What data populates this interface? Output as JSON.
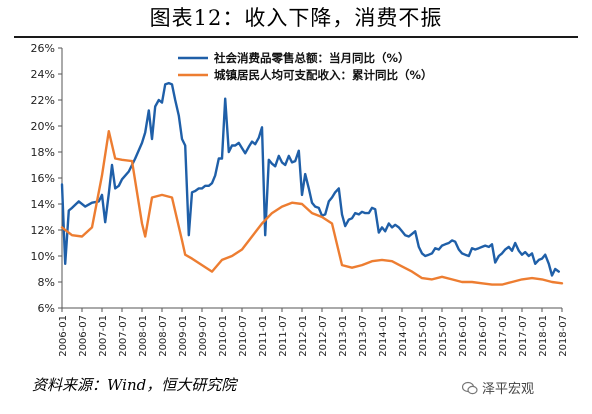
{
  "title": "图表12：收入下降，消费不振",
  "source": "资料来源：Wind，恒大研究院",
  "watermark": "泽平宏观",
  "chart_data": {
    "type": "line",
    "ylim": [
      6,
      26
    ],
    "yticks": [
      6,
      8,
      10,
      12,
      14,
      16,
      18,
      20,
      22,
      24,
      26
    ],
    "xlim": [
      2006.0,
      2018.5
    ],
    "x_tick_labels": [
      "2006-01",
      "2006-07",
      "2007-01",
      "2007-07",
      "2008-01",
      "2008-07",
      "2009-01",
      "2009-07",
      "2010-01",
      "2010-07",
      "2011-01",
      "2011-07",
      "2012-01",
      "2012-07",
      "2013-01",
      "2013-07",
      "2014-01",
      "2014-07",
      "2015-01",
      "2015-07",
      "2016-01",
      "2016-07",
      "2017-01",
      "2017-07",
      "2018-01",
      "2018-07"
    ],
    "grid": false,
    "legend_position": "top",
    "series": [
      {
        "name": "社会消费品零售总额：当月同比（%）",
        "color": "#1f5fa8",
        "points": [
          [
            2006.0,
            15.5
          ],
          [
            2006.08,
            9.4
          ],
          [
            2006.17,
            13.5
          ],
          [
            2006.25,
            13.7
          ],
          [
            2006.42,
            14.2
          ],
          [
            2006.58,
            13.8
          ],
          [
            2006.75,
            14.1
          ],
          [
            2006.92,
            14.2
          ],
          [
            2007.0,
            14.7
          ],
          [
            2007.08,
            12.6
          ],
          [
            2007.17,
            14.8
          ],
          [
            2007.25,
            17.0
          ],
          [
            2007.33,
            15.2
          ],
          [
            2007.42,
            15.4
          ],
          [
            2007.5,
            15.9
          ],
          [
            2007.67,
            16.5
          ],
          [
            2007.83,
            17.5
          ],
          [
            2008.0,
            18.7
          ],
          [
            2008.08,
            19.5
          ],
          [
            2008.17,
            21.2
          ],
          [
            2008.25,
            19.0
          ],
          [
            2008.33,
            21.5
          ],
          [
            2008.42,
            22.0
          ],
          [
            2008.5,
            21.8
          ],
          [
            2008.58,
            23.2
          ],
          [
            2008.67,
            23.3
          ],
          [
            2008.75,
            23.2
          ],
          [
            2008.83,
            22.0
          ],
          [
            2008.92,
            20.8
          ],
          [
            2009.0,
            19.0
          ],
          [
            2009.08,
            18.5
          ],
          [
            2009.17,
            11.6
          ],
          [
            2009.25,
            14.9
          ],
          [
            2009.33,
            15.0
          ],
          [
            2009.42,
            15.2
          ],
          [
            2009.5,
            15.2
          ],
          [
            2009.58,
            15.4
          ],
          [
            2009.67,
            15.4
          ],
          [
            2009.75,
            15.6
          ],
          [
            2009.83,
            16.2
          ],
          [
            2009.92,
            17.5
          ],
          [
            2010.0,
            17.5
          ],
          [
            2010.08,
            22.1
          ],
          [
            2010.17,
            18.0
          ],
          [
            2010.25,
            18.5
          ],
          [
            2010.33,
            18.5
          ],
          [
            2010.42,
            18.7
          ],
          [
            2010.5,
            18.3
          ],
          [
            2010.58,
            17.9
          ],
          [
            2010.67,
            18.4
          ],
          [
            2010.75,
            18.8
          ],
          [
            2010.83,
            18.6
          ],
          [
            2010.92,
            19.1
          ],
          [
            2011.0,
            19.9
          ],
          [
            2011.08,
            11.6
          ],
          [
            2011.17,
            17.4
          ],
          [
            2011.25,
            17.1
          ],
          [
            2011.33,
            16.9
          ],
          [
            2011.42,
            17.7
          ],
          [
            2011.5,
            17.2
          ],
          [
            2011.58,
            17.0
          ],
          [
            2011.67,
            17.7
          ],
          [
            2011.75,
            17.2
          ],
          [
            2011.83,
            17.3
          ],
          [
            2011.92,
            18.1
          ],
          [
            2012.0,
            14.7
          ],
          [
            2012.08,
            16.3
          ],
          [
            2012.17,
            15.2
          ],
          [
            2012.25,
            14.1
          ],
          [
            2012.33,
            13.8
          ],
          [
            2012.42,
            13.7
          ],
          [
            2012.5,
            13.1
          ],
          [
            2012.58,
            13.2
          ],
          [
            2012.67,
            14.2
          ],
          [
            2012.75,
            14.5
          ],
          [
            2012.83,
            14.9
          ],
          [
            2012.92,
            15.2
          ],
          [
            2013.0,
            13.2
          ],
          [
            2013.08,
            12.3
          ],
          [
            2013.17,
            12.8
          ],
          [
            2013.25,
            12.9
          ],
          [
            2013.33,
            13.3
          ],
          [
            2013.42,
            13.2
          ],
          [
            2013.5,
            13.4
          ],
          [
            2013.58,
            13.3
          ],
          [
            2013.67,
            13.3
          ],
          [
            2013.75,
            13.7
          ],
          [
            2013.83,
            13.6
          ],
          [
            2013.92,
            11.8
          ],
          [
            2014.0,
            12.2
          ],
          [
            2014.08,
            11.9
          ],
          [
            2014.17,
            12.5
          ],
          [
            2014.25,
            12.2
          ],
          [
            2014.33,
            12.4
          ],
          [
            2014.42,
            12.2
          ],
          [
            2014.5,
            11.9
          ],
          [
            2014.58,
            11.6
          ],
          [
            2014.67,
            11.5
          ],
          [
            2014.75,
            11.7
          ],
          [
            2014.83,
            11.9
          ],
          [
            2014.92,
            10.7
          ],
          [
            2015.0,
            10.2
          ],
          [
            2015.08,
            10.0
          ],
          [
            2015.17,
            10.1
          ],
          [
            2015.25,
            10.2
          ],
          [
            2015.33,
            10.6
          ],
          [
            2015.42,
            10.5
          ],
          [
            2015.5,
            10.8
          ],
          [
            2015.58,
            10.9
          ],
          [
            2015.67,
            11.0
          ],
          [
            2015.75,
            11.2
          ],
          [
            2015.83,
            11.1
          ],
          [
            2015.92,
            10.5
          ],
          [
            2016.0,
            10.2
          ],
          [
            2016.08,
            10.1
          ],
          [
            2016.17,
            10.0
          ],
          [
            2016.25,
            10.6
          ],
          [
            2016.33,
            10.5
          ],
          [
            2016.42,
            10.6
          ],
          [
            2016.5,
            10.7
          ],
          [
            2016.58,
            10.8
          ],
          [
            2016.67,
            10.7
          ],
          [
            2016.75,
            10.9
          ],
          [
            2016.83,
            9.5
          ],
          [
            2016.92,
            10.0
          ],
          [
            2017.0,
            10.2
          ],
          [
            2017.08,
            10.5
          ],
          [
            2017.17,
            10.7
          ],
          [
            2017.25,
            10.4
          ],
          [
            2017.33,
            11.0
          ],
          [
            2017.42,
            10.4
          ],
          [
            2017.5,
            10.1
          ],
          [
            2017.58,
            10.3
          ],
          [
            2017.67,
            10.0
          ],
          [
            2017.75,
            10.2
          ],
          [
            2017.83,
            9.4
          ],
          [
            2017.92,
            9.7
          ],
          [
            2018.0,
            9.8
          ],
          [
            2018.08,
            10.1
          ],
          [
            2018.17,
            9.4
          ],
          [
            2018.25,
            8.5
          ],
          [
            2018.33,
            9.0
          ],
          [
            2018.42,
            8.8
          ]
        ]
      },
      {
        "name": "城镇居民人均可支配收入：累计同比（%）",
        "color": "#ed7d31",
        "points": [
          [
            2006.0,
            12.2
          ],
          [
            2006.25,
            11.6
          ],
          [
            2006.5,
            11.5
          ],
          [
            2006.75,
            12.2
          ],
          [
            2007.0,
            16.2
          ],
          [
            2007.17,
            19.6
          ],
          [
            2007.33,
            17.5
          ],
          [
            2007.5,
            17.4
          ],
          [
            2007.75,
            17.3
          ],
          [
            2008.0,
            12.5
          ],
          [
            2008.08,
            11.5
          ],
          [
            2008.25,
            14.5
          ],
          [
            2008.5,
            14.7
          ],
          [
            2008.75,
            14.5
          ],
          [
            2009.0,
            11.2
          ],
          [
            2009.08,
            10.1
          ],
          [
            2009.25,
            9.8
          ],
          [
            2009.5,
            9.3
          ],
          [
            2009.75,
            8.8
          ],
          [
            2010.0,
            9.7
          ],
          [
            2010.25,
            10.0
          ],
          [
            2010.5,
            10.5
          ],
          [
            2010.75,
            11.5
          ],
          [
            2011.0,
            12.5
          ],
          [
            2011.25,
            13.3
          ],
          [
            2011.5,
            13.8
          ],
          [
            2011.75,
            14.1
          ],
          [
            2012.0,
            14.0
          ],
          [
            2012.25,
            13.3
          ],
          [
            2012.5,
            13.0
          ],
          [
            2012.75,
            12.5
          ],
          [
            2013.0,
            9.3
          ],
          [
            2013.25,
            9.1
          ],
          [
            2013.5,
            9.3
          ],
          [
            2013.75,
            9.6
          ],
          [
            2014.0,
            9.7
          ],
          [
            2014.25,
            9.6
          ],
          [
            2014.5,
            9.2
          ],
          [
            2014.75,
            8.8
          ],
          [
            2015.0,
            8.3
          ],
          [
            2015.25,
            8.2
          ],
          [
            2015.5,
            8.4
          ],
          [
            2015.75,
            8.2
          ],
          [
            2016.0,
            8.0
          ],
          [
            2016.25,
            8.0
          ],
          [
            2016.5,
            7.9
          ],
          [
            2016.75,
            7.8
          ],
          [
            2017.0,
            7.8
          ],
          [
            2017.25,
            8.0
          ],
          [
            2017.5,
            8.2
          ],
          [
            2017.75,
            8.3
          ],
          [
            2018.0,
            8.2
          ],
          [
            2018.25,
            8.0
          ],
          [
            2018.5,
            7.9
          ]
        ]
      }
    ]
  }
}
